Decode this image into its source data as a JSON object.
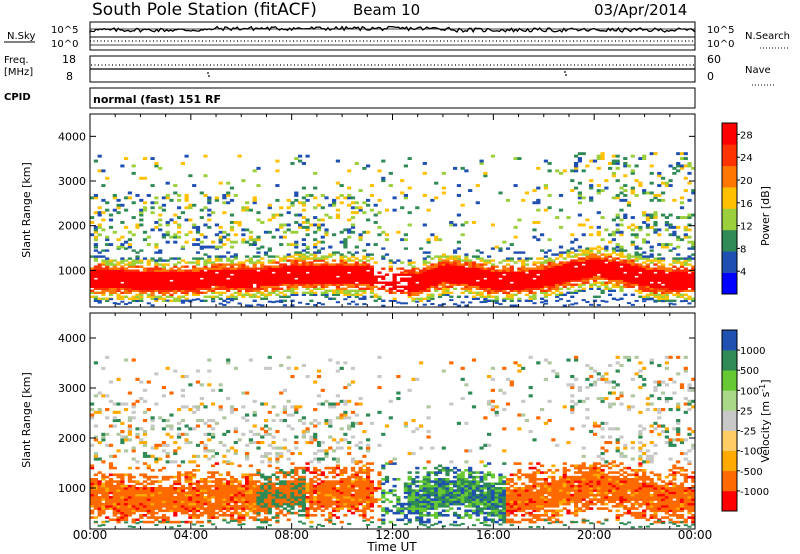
{
  "header": {
    "station": "South Pole Station (fitACF)",
    "beam": "Beam 10",
    "date": "03/Apr/2014"
  },
  "param_panels": {
    "nsky_label": "N.Sky",
    "nsearch_label": "N.Search",
    "sky_ticks": [
      "10^5",
      "10^0"
    ],
    "search_ticks": [
      "10^5",
      "10^0"
    ],
    "freq_label_1": "Freq.",
    "freq_label_2": "[MHz]",
    "freq_ticks": [
      "18",
      "8"
    ],
    "nave_label": "Nave",
    "nave_ticks": [
      "60",
      "0"
    ],
    "cpid_label": "CPID",
    "cpid_value": "normal (fast) 151 RF"
  },
  "colors": {
    "power_scale": [
      "#0000ff",
      "#1f4fb0",
      "#2f8a55",
      "#9bcf3b",
      "#ffc000",
      "#ff7700",
      "#ff3300",
      "#ff0000"
    ],
    "velocity_scale": [
      "#ff0000",
      "#ff6a00",
      "#ffaa00",
      "#c8c8c8",
      "#b0c8a0",
      "#66c833",
      "#2f8a55",
      "#2050b0"
    ]
  },
  "chart_data": [
    {
      "type": "heatmap",
      "title": "Power",
      "xlabel": "Time UT",
      "ylabel": "Slant Range [km]",
      "x_ticks": [
        "00:00",
        "04:00",
        "08:00",
        "12:00",
        "16:00",
        "20:00",
        "00:00"
      ],
      "xlim_hours": [
        0,
        24
      ],
      "ylim": [
        180,
        4500
      ],
      "y_ticks": [
        "1000",
        "2000",
        "3000",
        "4000"
      ],
      "colorbar_label": "Power [dB]",
      "colorbar_ticks": [
        "28",
        "24",
        "20",
        "16",
        "12",
        "8",
        "4"
      ],
      "colorbar_range": [
        0,
        30
      ],
      "band_center_km": [
        [
          0,
          800
        ],
        [
          1,
          780
        ],
        [
          2,
          760
        ],
        [
          3,
          740
        ],
        [
          4,
          760
        ],
        [
          5,
          820
        ],
        [
          6,
          800
        ],
        [
          7,
          820
        ],
        [
          8,
          900
        ],
        [
          9,
          900
        ],
        [
          10,
          880
        ],
        [
          11,
          870
        ],
        [
          12,
          700
        ],
        [
          13,
          720
        ],
        [
          14,
          920
        ],
        [
          15,
          850
        ],
        [
          16,
          760
        ],
        [
          17,
          760
        ],
        [
          18,
          820
        ],
        [
          19,
          950
        ],
        [
          20,
          1050
        ],
        [
          21,
          950
        ],
        [
          22,
          820
        ],
        [
          23,
          760
        ],
        [
          24,
          760
        ]
      ]
    },
    {
      "type": "heatmap",
      "title": "Velocity",
      "xlabel": "Time UT",
      "ylabel": "Slant Range [km]",
      "x_ticks": [
        "00:00",
        "04:00",
        "08:00",
        "12:00",
        "16:00",
        "20:00",
        "00:00"
      ],
      "xlim_hours": [
        0,
        24
      ],
      "ylim": [
        180,
        4500
      ],
      "y_ticks": [
        "1000",
        "2000",
        "3000",
        "4000"
      ],
      "colorbar_label": "Velocity [m s^-1]",
      "colorbar_ticks": [
        "1000",
        "500",
        "100",
        "25",
        "-25",
        "-100",
        "-500",
        "-1000"
      ],
      "colorbar_range": [
        -1000,
        1000
      ]
    }
  ]
}
